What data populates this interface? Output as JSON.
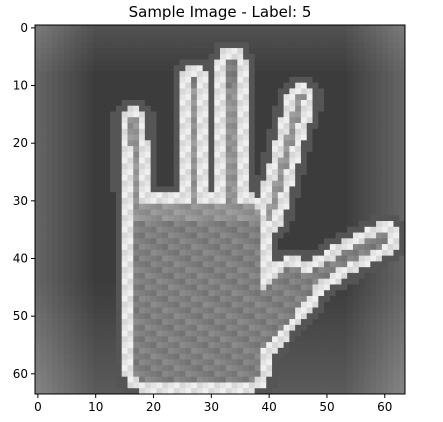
{
  "chart_data": {
    "type": "heatmap",
    "title": "Sample Image - Label: 5",
    "xlabel": "",
    "ylabel": "",
    "colormap": "gray",
    "grid": false,
    "image_shape": [
      64,
      64
    ],
    "xlim": [
      -0.5,
      63.5
    ],
    "ylim": [
      63.5,
      -0.5
    ],
    "x_ticks": [
      0,
      10,
      20,
      30,
      40,
      50,
      60
    ],
    "y_ticks": [
      0,
      10,
      20,
      30,
      40,
      50,
      60
    ],
    "x_tick_labels": [
      "0",
      "10",
      "20",
      "30",
      "40",
      "50",
      "60"
    ],
    "y_tick_labels": [
      "0",
      "10",
      "20",
      "30",
      "40",
      "50",
      "60"
    ]
  }
}
